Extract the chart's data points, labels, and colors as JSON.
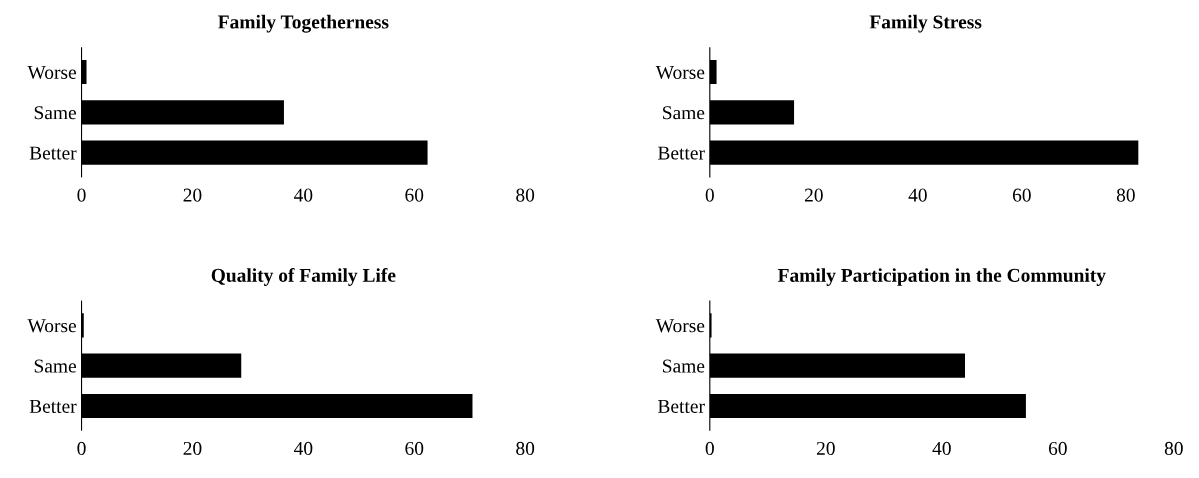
{
  "chart_data": [
    {
      "type": "bar",
      "orientation": "horizontal",
      "title": "Family Togetherness",
      "categories": [
        "Worse",
        "Same",
        "Better"
      ],
      "values": [
        0.9,
        36.5,
        62.4
      ],
      "color": "#000000",
      "xlim": [
        0,
        80
      ],
      "xticks": [
        0,
        20,
        40,
        60,
        80
      ],
      "grid": false,
      "legend": false
    },
    {
      "type": "bar",
      "orientation": "horizontal",
      "title": "Family Stress",
      "categories": [
        "Worse",
        "Same",
        "Better"
      ],
      "values": [
        1.3,
        16.2,
        82.4
      ],
      "color": "#000000",
      "xlim": [
        0,
        83
      ],
      "xticks": [
        0,
        20,
        40,
        60,
        80
      ],
      "grid": false,
      "legend": false
    },
    {
      "type": "bar",
      "orientation": "horizontal",
      "title": "Quality of Family Life",
      "categories": [
        "Worse",
        "Same",
        "Better"
      ],
      "values": [
        0.4,
        28.8,
        70.5
      ],
      "color": "#000000",
      "xlim": [
        0,
        80
      ],
      "xticks": [
        0,
        20,
        40,
        60,
        80
      ],
      "grid": false,
      "legend": false
    },
    {
      "type": "bar",
      "orientation": "horizontal",
      "title": "Family Participation in the Community",
      "categories": [
        "Worse",
        "Same",
        "Better"
      ],
      "values": [
        0.3,
        44.0,
        54.5
      ],
      "color": "#000000",
      "xlim": [
        0,
        80
      ],
      "xticks": [
        0,
        20,
        40,
        60,
        80
      ],
      "grid": false,
      "legend": false
    }
  ]
}
